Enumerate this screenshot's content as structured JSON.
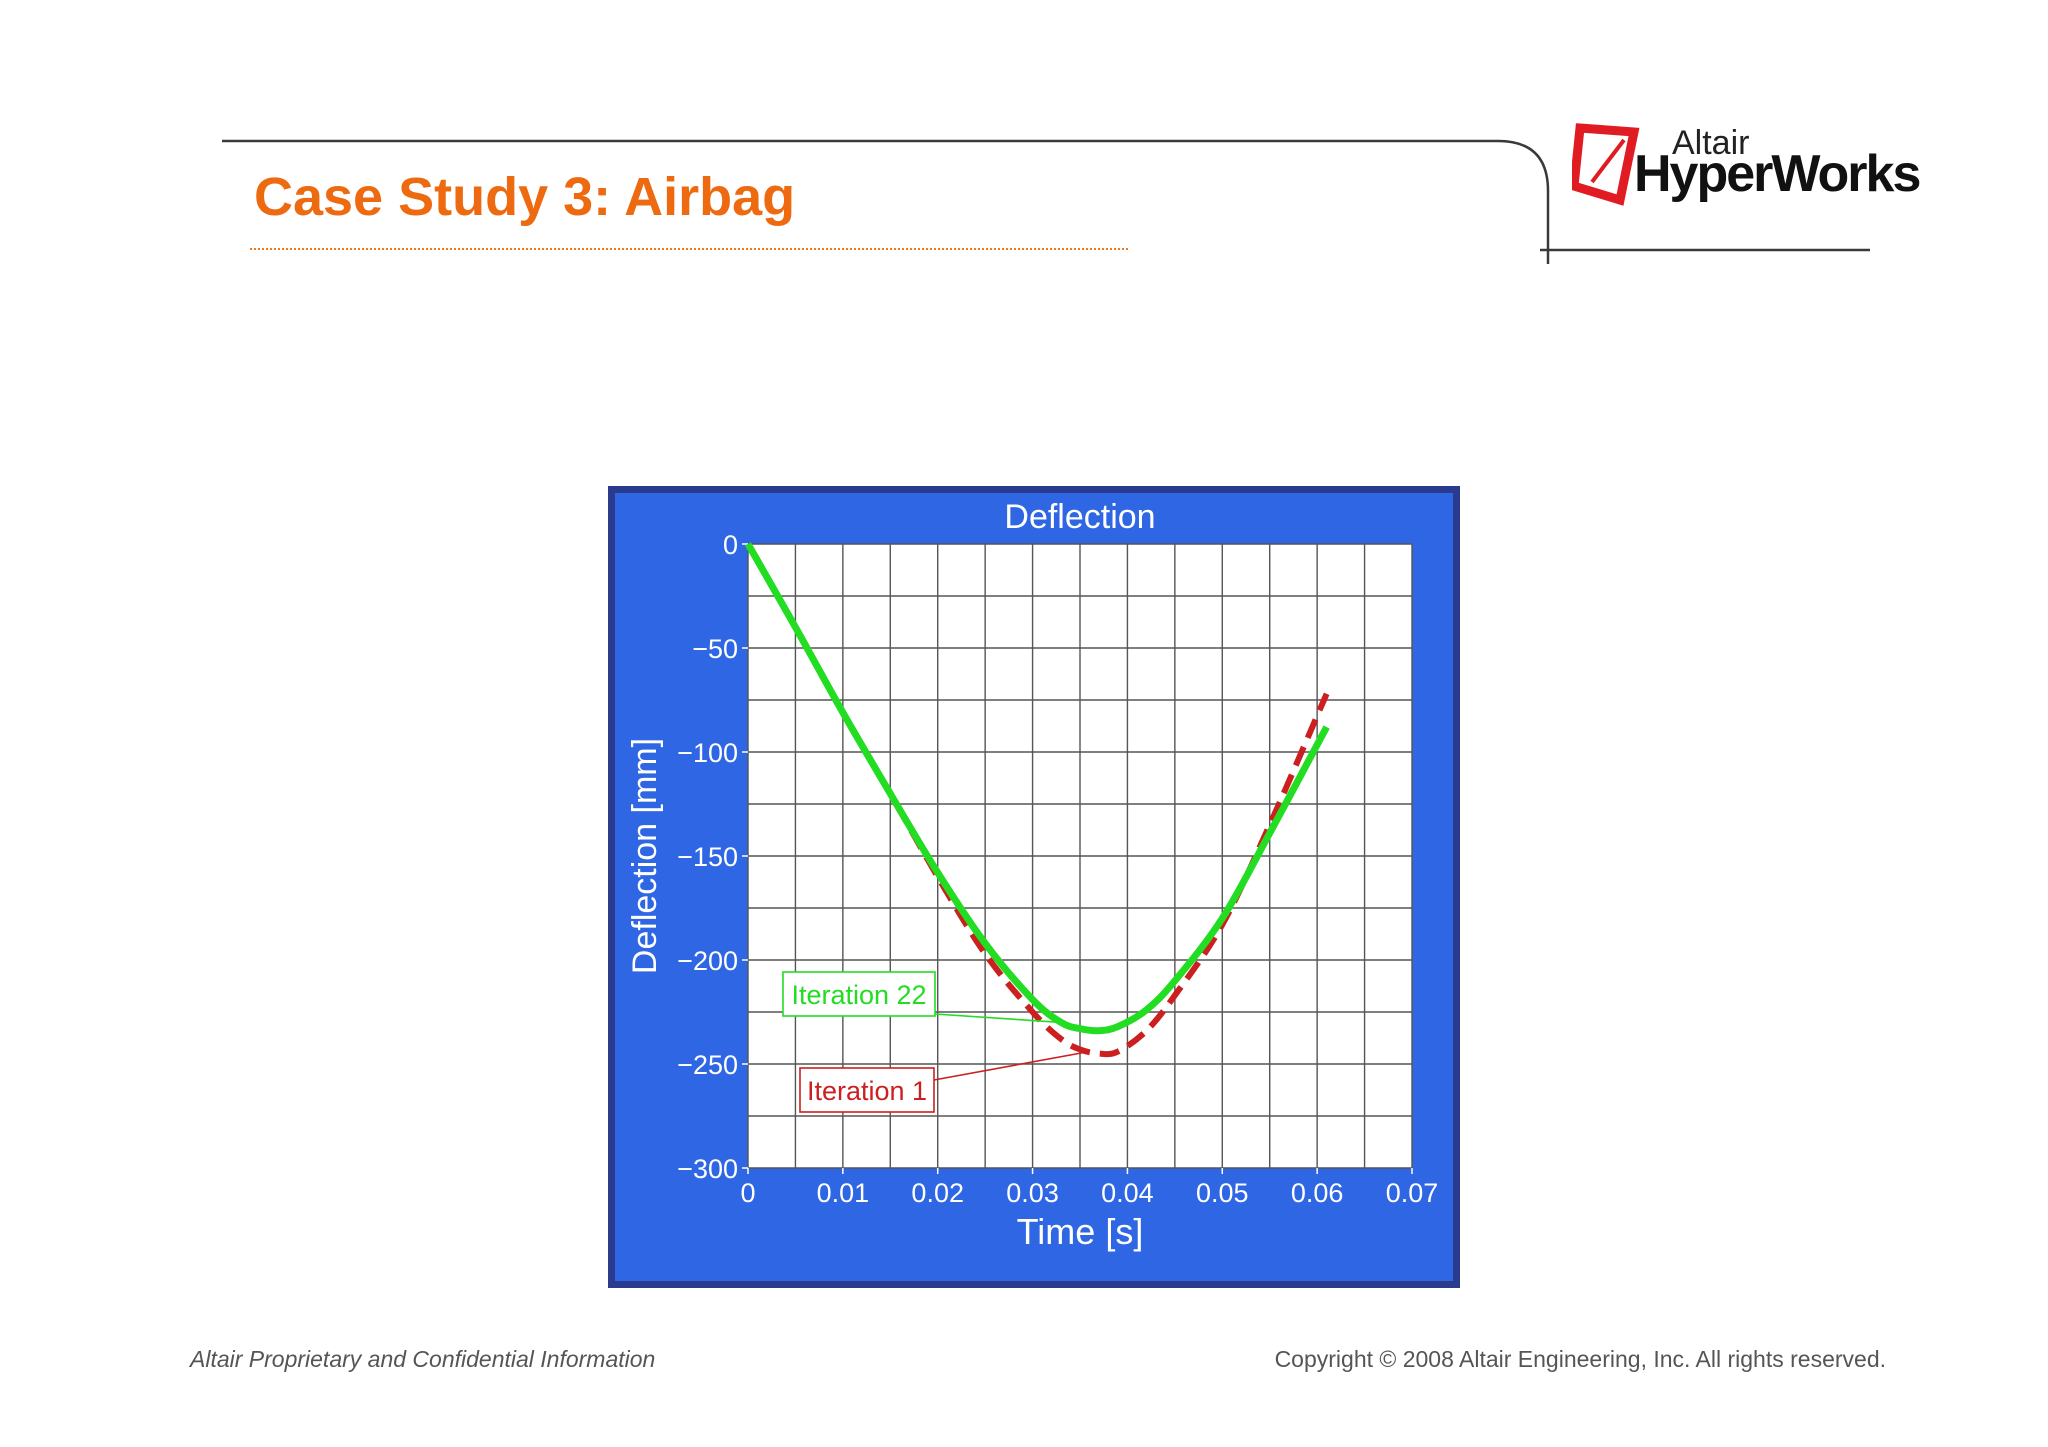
{
  "slide": {
    "title": "Case Study 3: Airbag",
    "logo_small": "Altair",
    "logo_big": "HyperWorks"
  },
  "footer": {
    "left": "Altair Proprietary and Confidential Information",
    "right": "Copyright © 2008 Altair Engineering, Inc. All rights reserved."
  },
  "colors": {
    "title": "#ee6a10",
    "panel": "#2e66e4",
    "panel_border": "#2a3a8c",
    "iteration_22": "#22dd22",
    "iteration_1": "#cc1f1f",
    "logo_red": "#e11b22"
  },
  "chart_data": {
    "type": "line",
    "title": "Deflection",
    "xlabel": "Time [s]",
    "ylabel": "Deflection [mm]",
    "xlim": [
      0,
      0.07
    ],
    "ylim": [
      -300,
      0
    ],
    "xticks": [
      "0",
      "0.01",
      "0.02",
      "0.03",
      "0.04",
      "0.05",
      "0.06",
      "0.07"
    ],
    "yticks": [
      "0",
      "−50",
      "−100",
      "−150",
      "−200",
      "−250",
      "−300"
    ],
    "grid": true,
    "series": [
      {
        "name": "Iteration 22",
        "style": "solid",
        "color": "#22dd22",
        "x": [
          0,
          0.005,
          0.01,
          0.015,
          0.02,
          0.025,
          0.03,
          0.033,
          0.035,
          0.037,
          0.039,
          0.042,
          0.045,
          0.05,
          0.055,
          0.061
        ],
        "y": [
          0,
          -40,
          -81,
          -120,
          -158,
          -192,
          -219,
          -230,
          -233,
          -234,
          -232,
          -224,
          -210,
          -180,
          -139,
          -88
        ]
      },
      {
        "name": "Iteration 1",
        "style": "dashed",
        "color": "#cc1f1f",
        "x": [
          0,
          0.005,
          0.01,
          0.015,
          0.02,
          0.025,
          0.03,
          0.033,
          0.035,
          0.037,
          0.039,
          0.042,
          0.045,
          0.05,
          0.055,
          0.061
        ],
        "y": [
          0,
          -40,
          -81,
          -120,
          -160,
          -197,
          -225,
          -238,
          -243,
          -245,
          -244,
          -234,
          -217,
          -183,
          -135,
          -72
        ]
      }
    ],
    "annotations": [
      {
        "text": "Iteration 22",
        "x": 0.033,
        "y": -230
      },
      {
        "text": "Iteration 1",
        "x": 0.036,
        "y": -244
      }
    ]
  }
}
